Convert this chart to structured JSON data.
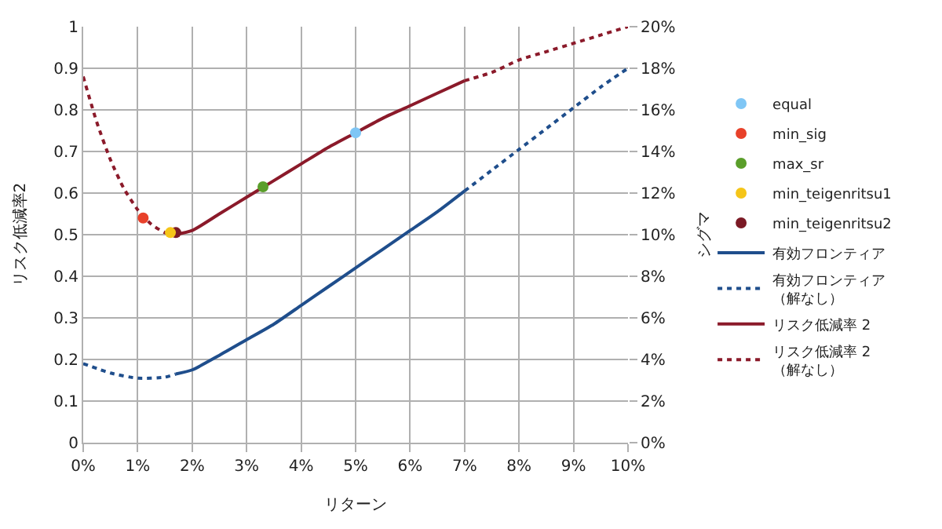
{
  "chart_data": {
    "type": "line",
    "xlabel": "リターン",
    "ylabel": "リスク低減率2",
    "y2label": "シグマ",
    "xlim": [
      0,
      10
    ],
    "xticks": [
      {
        "value": 0,
        "label": "0%"
      },
      {
        "value": 1,
        "label": "1%"
      },
      {
        "value": 2,
        "label": "2%"
      },
      {
        "value": 3,
        "label": "3%"
      },
      {
        "value": 4,
        "label": "4%"
      },
      {
        "value": 5,
        "label": "5%"
      },
      {
        "value": 6,
        "label": "6%"
      },
      {
        "value": 7,
        "label": "7%"
      },
      {
        "value": 8,
        "label": "8%"
      },
      {
        "value": 9,
        "label": "9%"
      },
      {
        "value": 10,
        "label": "10%"
      }
    ],
    "ylim": [
      0,
      1
    ],
    "yticks": [
      0,
      0.1,
      0.2,
      0.3,
      0.4,
      0.5,
      0.6,
      0.7,
      0.8,
      0.9,
      1
    ],
    "y2lim": [
      0,
      20
    ],
    "y2ticks": [
      {
        "value": 0,
        "label": "0%"
      },
      {
        "value": 2,
        "label": "2%"
      },
      {
        "value": 4,
        "label": "4%"
      },
      {
        "value": 6,
        "label": "6%"
      },
      {
        "value": 8,
        "label": "8%"
      },
      {
        "value": 10,
        "label": "10%"
      },
      {
        "value": 12,
        "label": "12%"
      },
      {
        "value": 14,
        "label": "14%"
      },
      {
        "value": 16,
        "label": "16%"
      },
      {
        "value": 18,
        "label": "18%"
      },
      {
        "value": 20,
        "label": "20%"
      }
    ],
    "grid": true,
    "legend": "right",
    "marker": "none",
    "series": [
      {
        "name": "equal",
        "type": "scatter",
        "marker": "circle",
        "color": "#7fc6f5",
        "x": [
          5.0
        ],
        "values": [
          0.745
        ]
      },
      {
        "name": "min_sig",
        "type": "scatter",
        "marker": "circle",
        "color": "#e8412a",
        "x": [
          1.1
        ],
        "values": [
          0.54
        ]
      },
      {
        "name": "max_sr",
        "type": "scatter",
        "marker": "circle",
        "color": "#5a9e2a",
        "x": [
          3.3
        ],
        "values": [
          0.615
        ]
      },
      {
        "name": "min_teigenritsu1",
        "type": "scatter",
        "marker": "circle",
        "color": "#f5c518",
        "x": [
          1.6
        ],
        "values": [
          0.505
        ]
      },
      {
        "name": "min_teigenritsu2",
        "type": "scatter",
        "marker": "circle",
        "color": "#7b1a25",
        "x": [
          1.7
        ],
        "values": [
          0.505
        ]
      },
      {
        "name": "有効フロンティア",
        "axis": "y2",
        "line_style": "solid",
        "color": "#1f4e8c",
        "x": [
          1.7,
          2,
          2.5,
          3,
          3.5,
          4,
          4.5,
          5,
          5.5,
          6,
          6.5,
          7
        ],
        "values": [
          3.3,
          3.5,
          4.2,
          4.95,
          5.7,
          6.6,
          7.5,
          8.4,
          9.3,
          10.2,
          11.1,
          12.1
        ]
      },
      {
        "name": "有効フロンティア（解なし）",
        "axis": "y2",
        "line_style": "dotted",
        "color": "#1f4e8c",
        "x": [
          0,
          0.5,
          1,
          1.5,
          1.7,
          4,
          7,
          7.5,
          8,
          8.5,
          9,
          9.5,
          10
        ],
        "values": [
          3.8,
          3.35,
          3.1,
          3.15,
          3.3,
          null,
          12.1,
          13.1,
          14.1,
          15.1,
          16.1,
          17.1,
          18
        ]
      },
      {
        "name": "リスク低減率 2",
        "line_style": "solid",
        "color": "#8b1a2a",
        "x": [
          1.7,
          2,
          2.5,
          3,
          3.5,
          4,
          4.5,
          5,
          5.5,
          6,
          6.5,
          7
        ],
        "values": [
          0.5,
          0.51,
          0.55,
          0.59,
          0.63,
          0.67,
          0.71,
          0.745,
          0.78,
          0.81,
          0.84,
          0.87
        ]
      },
      {
        "name": "リスク低減率 2（解なし）",
        "line_style": "dotted",
        "color": "#8b1a2a",
        "x": [
          0,
          0.25,
          0.5,
          0.75,
          1,
          1.25,
          1.5,
          1.7,
          4,
          7,
          7.5,
          8,
          8.5,
          9,
          9.5,
          10
        ],
        "values": [
          0.88,
          0.77,
          0.68,
          0.61,
          0.56,
          0.525,
          0.505,
          0.5,
          null,
          0.87,
          0.89,
          0.92,
          0.94,
          0.96,
          0.98,
          1.0
        ]
      }
    ]
  }
}
